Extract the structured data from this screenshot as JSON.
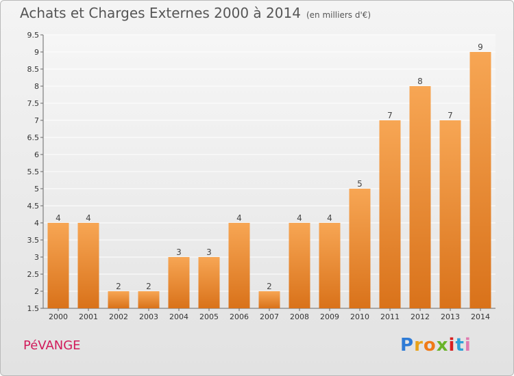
{
  "title": "Achats et Charges Externes 2000 à 2014",
  "unit_note": "(en milliers d'€)",
  "commune": "PéVANGE",
  "brand": {
    "letters": [
      "P",
      "r",
      "o",
      "x",
      "i",
      "t",
      "i"
    ],
    "colors": [
      "#2e7bd6",
      "#e8a21a",
      "#f07a18",
      "#6ab42a",
      "#d82020",
      "#2fa0d8",
      "#e07ab0"
    ]
  },
  "colors": {
    "bar_top": "#f7a654",
    "bar_bottom": "#d9721a",
    "title": "#555555",
    "commune": "#d11a5a"
  },
  "chart_data": {
    "type": "bar",
    "title": "Achats et Charges Externes 2000 à 2014",
    "xlabel": "",
    "ylabel": "",
    "categories": [
      "2000",
      "2001",
      "2002",
      "2003",
      "2004",
      "2005",
      "2006",
      "2007",
      "2008",
      "2009",
      "2010",
      "2011",
      "2012",
      "2013",
      "2014"
    ],
    "values": [
      4,
      4,
      2,
      2,
      3,
      3,
      4,
      2,
      4,
      4,
      5,
      7,
      8,
      7,
      9
    ],
    "data_labels": [
      "4",
      "4",
      "2",
      "2",
      "3",
      "3",
      "4",
      "2",
      "4",
      "4",
      "5",
      "7",
      "8",
      "7",
      "9"
    ],
    "ylim": [
      1.5,
      9.5
    ],
    "yticks": [
      "1.5",
      "2",
      "2.5",
      "3",
      "3.5",
      "4",
      "4.5",
      "5",
      "5.5",
      "6",
      "6.5",
      "7",
      "7.5",
      "8",
      "8.5",
      "9",
      "9.5"
    ],
    "grid": true,
    "legend": "none"
  }
}
